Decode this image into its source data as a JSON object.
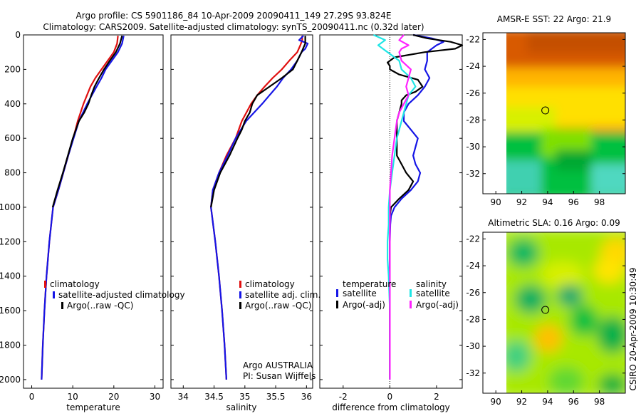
{
  "title": {
    "line1": "Argo profile: CS 5901186_84 10-Apr-2009 20090411_149 27.29S 93.824E",
    "line2": "Climatology: CARS2009. Satellite-adjusted climatology: synTS_20090411.nc (0.32d later)"
  },
  "side_text": "CSIRO 20-Apr-2009 10:30:49",
  "colors": {
    "red": "#e01010",
    "blue": "#1515e6",
    "black": "#000000",
    "cyan": "#20e6e6",
    "magenta": "#ff22ff"
  },
  "chart_data": [
    {
      "type": "line",
      "id": "temperature",
      "xlabel": "temperature",
      "ylabel": "",
      "xlim": [
        -2,
        32
      ],
      "ylim": [
        2050,
        0
      ],
      "xticks": [
        0,
        10,
        20,
        30
      ],
      "yticks": [
        0,
        200,
        400,
        600,
        800,
        1000,
        1200,
        1400,
        1600,
        1800,
        2000
      ],
      "legend": [
        "climatology",
        "satellite-adjusted climatology",
        "Argo(..raw -QC)"
      ],
      "series": [
        {
          "name": "climatology",
          "color": "red",
          "depth": [
            5,
            50,
            100,
            150,
            200,
            250,
            300,
            400,
            500,
            600,
            700,
            800,
            900,
            1000,
            1200,
            1400,
            1600,
            1800,
            2000
          ],
          "values": [
            21.0,
            20.8,
            20.0,
            18.5,
            17.0,
            15.5,
            14.3,
            12.6,
            11.2,
            10.1,
            8.9,
            7.7,
            6.5,
            5.2,
            4.3,
            3.6,
            3.1,
            2.7,
            2.4
          ]
        },
        {
          "name": "satellite-adjusted climatology",
          "color": "blue",
          "depth": [
            5,
            50,
            100,
            150,
            200,
            250,
            300,
            400,
            500,
            600,
            700,
            800,
            900,
            1000,
            1200,
            1400,
            1600,
            1800,
            2000
          ],
          "values": [
            22.4,
            22.0,
            21.0,
            19.5,
            18.0,
            17.0,
            15.8,
            13.5,
            11.5,
            10.2,
            8.9,
            7.7,
            6.5,
            5.2,
            4.3,
            3.6,
            3.1,
            2.7,
            2.4
          ]
        },
        {
          "name": "Argo(..raw -QC)",
          "color": "black",
          "depth": [
            5,
            50,
            100,
            150,
            200,
            250,
            300,
            350,
            400,
            450,
            500,
            600,
            700,
            800,
            900,
            1000
          ],
          "values": [
            22.0,
            21.5,
            20.5,
            19.0,
            17.6,
            16.4,
            15.3,
            14.5,
            13.8,
            12.8,
            11.5,
            10.0,
            8.8,
            7.6,
            6.3,
            5.1
          ]
        }
      ]
    },
    {
      "type": "line",
      "id": "salinity",
      "xlabel": "salinity",
      "ylabel": "",
      "xlim": [
        33.8,
        36.1
      ],
      "ylim": [
        2050,
        0
      ],
      "xticks": [
        34,
        34.5,
        35,
        35.5,
        36
      ],
      "legend": [
        "climatology",
        "satellite adj. clim.",
        "Argo(..raw -QC)"
      ],
      "annotation": [
        "Argo AUSTRALIA",
        "PI: Susan Wijffels"
      ],
      "series": [
        {
          "name": "climatology",
          "color": "red",
          "depth": [
            5,
            30,
            60,
            100,
            150,
            200,
            250,
            300,
            350,
            400,
            500,
            600,
            700,
            800,
            900,
            1000,
            1200,
            1400,
            1600,
            1800,
            2000
          ],
          "values": [
            35.93,
            35.93,
            35.9,
            35.85,
            35.72,
            35.6,
            35.45,
            35.32,
            35.2,
            35.1,
            34.95,
            34.85,
            34.7,
            34.58,
            34.48,
            34.45,
            34.52,
            34.58,
            34.63,
            34.67,
            34.7
          ]
        },
        {
          "name": "satellite adj. clim.",
          "color": "blue",
          "depth": [
            5,
            30,
            50,
            80,
            100,
            150,
            200,
            250,
            300,
            350,
            400,
            500,
            600,
            700,
            800,
            900,
            1000,
            1200,
            1400,
            1600,
            1800,
            2000
          ],
          "values": [
            35.95,
            35.88,
            36.02,
            35.98,
            35.92,
            35.85,
            35.75,
            35.62,
            35.52,
            35.4,
            35.28,
            35.02,
            34.85,
            34.72,
            34.58,
            34.48,
            34.45,
            34.52,
            34.58,
            34.63,
            34.67,
            34.7
          ]
        },
        {
          "name": "Argo(..raw -QC)",
          "color": "black",
          "depth": [
            5,
            50,
            100,
            150,
            200,
            250,
            300,
            350,
            400,
            450,
            500,
            550,
            600,
            700,
            800,
            900,
            1000
          ],
          "values": [
            35.98,
            35.98,
            35.92,
            35.85,
            35.78,
            35.6,
            35.4,
            35.2,
            35.12,
            35.08,
            35.0,
            34.95,
            34.88,
            34.75,
            34.6,
            34.5,
            34.45
          ]
        }
      ]
    },
    {
      "type": "line",
      "id": "difference",
      "xlabel": "difference from climatology",
      "ylabel": "",
      "xlim": [
        -3,
        3.1
      ],
      "ylim": [
        2050,
        0
      ],
      "xticks": [
        -2,
        0,
        2
      ],
      "legend_groups": [
        {
          "title": "temperature",
          "entries": [
            "satellite",
            "Argo(-adj)"
          ]
        },
        {
          "title": "salinity",
          "entries": [
            "satellite",
            "Argo(-adj)"
          ]
        }
      ],
      "series": [
        {
          "name": "temperature satellite",
          "color": "blue",
          "depth": [
            0,
            20,
            40,
            60,
            100,
            150,
            200,
            250,
            300,
            350,
            400,
            450,
            500,
            550,
            600,
            650,
            700,
            750,
            800,
            850,
            900,
            950,
            1000,
            1050,
            1100,
            1200,
            1400,
            1600,
            1800,
            2000
          ],
          "values": [
            1.0,
            1.8,
            2.3,
            2.0,
            1.6,
            1.6,
            1.5,
            1.7,
            1.5,
            1.2,
            0.8,
            0.6,
            0.6,
            0.9,
            1.2,
            1.1,
            1.0,
            1.1,
            1.3,
            1.2,
            0.9,
            0.5,
            0.2,
            0.05,
            0.02,
            0.0,
            0.0,
            0.0,
            0.0,
            0.0
          ]
        },
        {
          "name": "temperature Argo(-adj)",
          "color": "black",
          "depth": [
            0,
            20,
            40,
            60,
            80,
            100,
            130,
            160,
            180,
            200,
            230,
            260,
            280,
            300,
            330,
            350,
            380,
            400,
            450,
            500,
            550,
            600,
            650,
            700,
            750,
            800,
            850,
            900,
            950,
            1000,
            1050,
            1100,
            1200,
            1400,
            1600,
            1800,
            2000
          ],
          "values": [
            1.0,
            1.6,
            2.6,
            3.1,
            2.8,
            1.5,
            0.2,
            -0.1,
            0.0,
            0.0,
            0.4,
            1.2,
            1.3,
            1.4,
            1.1,
            0.7,
            0.5,
            0.5,
            0.4,
            0.3,
            0.3,
            0.3,
            0.3,
            0.3,
            0.5,
            0.7,
            1.0,
            0.8,
            0.4,
            0.05,
            0.0,
            0.0,
            0.0,
            0.0,
            0.0,
            0.0,
            0.0
          ]
        },
        {
          "name": "salinity satellite",
          "color": "cyan",
          "depth": [
            0,
            30,
            60,
            80,
            100,
            150,
            200,
            250,
            300,
            350,
            400,
            450,
            500,
            600,
            700,
            800,
            900,
            1000,
            1100,
            1200,
            1300,
            1400,
            1600,
            1800,
            2000
          ],
          "values": [
            -0.7,
            -0.2,
            -0.5,
            -0.3,
            -0.1,
            0.4,
            0.5,
            0.9,
            1.1,
            0.8,
            0.7,
            0.6,
            0.5,
            0.3,
            0.2,
            0.1,
            0.0,
            -0.05,
            -0.05,
            -0.1,
            -0.1,
            -0.05,
            0.0,
            0.0,
            0.0
          ]
        },
        {
          "name": "salinity Argo(-adj)",
          "color": "magenta",
          "depth": [
            0,
            30,
            60,
            80,
            100,
            150,
            200,
            250,
            300,
            350,
            400,
            450,
            500,
            600,
            700,
            800,
            900,
            1000,
            1100,
            1200,
            1300,
            1400,
            1600,
            1800,
            2000
          ],
          "values": [
            0.6,
            0.4,
            0.8,
            0.5,
            0.4,
            0.5,
            0.9,
            0.8,
            0.7,
            0.8,
            0.6,
            0.4,
            0.3,
            0.2,
            0.1,
            0.05,
            0.0,
            0.0,
            0.0,
            0.0,
            0.0,
            0.0,
            0.0,
            0.0,
            0.0
          ]
        }
      ]
    },
    {
      "type": "heatmap",
      "id": "sst-map",
      "title": "AMSR-E SST: 22 Argo: 21.9",
      "xlim": [
        89,
        100
      ],
      "ylim": [
        -33.5,
        -21.5
      ],
      "xticks": [
        90,
        92,
        94,
        96,
        98
      ],
      "yticks": [
        -22,
        -24,
        -26,
        -28,
        -30,
        -32
      ],
      "data_xlim": [
        90,
        100
      ],
      "marker": {
        "lon": 93.82,
        "lat": -27.29
      }
    },
    {
      "type": "heatmap",
      "id": "sla-map",
      "title": "Altimetric SLA: 0.16 Argo: 0.09",
      "xlim": [
        89,
        100
      ],
      "ylim": [
        -33.5,
        -21.5
      ],
      "xticks": [
        90,
        92,
        94,
        96,
        98
      ],
      "yticks": [
        -22,
        -24,
        -26,
        -28,
        -30,
        -32
      ],
      "data_xlim": [
        90,
        100
      ],
      "marker": {
        "lon": 93.82,
        "lat": -27.29
      }
    }
  ]
}
